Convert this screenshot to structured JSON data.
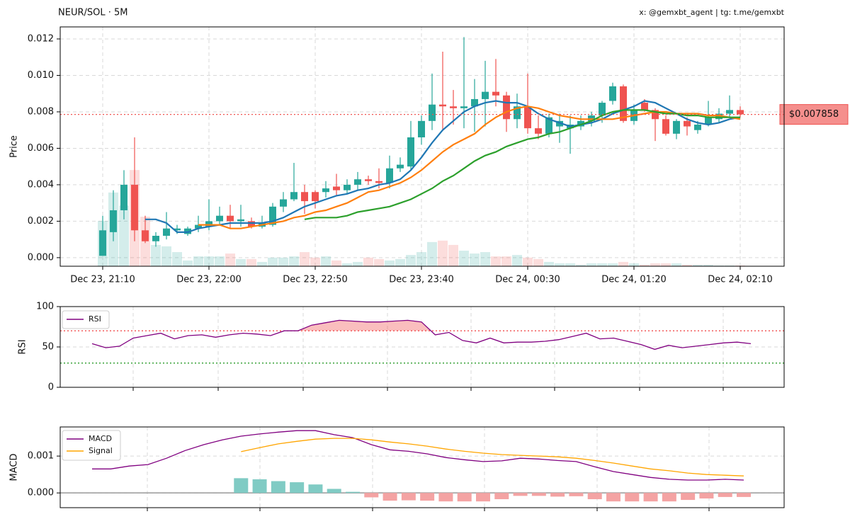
{
  "chart_data": [
    {
      "type": "candlestick",
      "title": "NEUR/SOL · 5M",
      "subtitle": "x: @gemxbt_agent | tg: t.me/gemxbt",
      "ylabel": "Price",
      "categories": [
        "Dec 23, 21:10",
        null,
        null,
        null,
        null,
        null,
        null,
        null,
        null,
        null,
        "Dec 23, 22:00",
        null,
        null,
        null,
        null,
        null,
        null,
        null,
        null,
        null,
        "Dec 23, 22:50",
        null,
        null,
        null,
        null,
        null,
        null,
        null,
        null,
        null,
        "Dec 23, 23:40",
        null,
        null,
        null,
        null,
        null,
        null,
        null,
        null,
        null,
        "Dec 24, 00:30",
        null,
        null,
        null,
        null,
        null,
        null,
        null,
        null,
        null,
        "Dec 24, 01:20",
        null,
        null,
        null,
        null,
        null,
        null,
        null,
        null,
        null,
        "Dec 24, 02:10"
      ],
      "open": [
        0.0001,
        0.0014,
        0.0026,
        0.004,
        0.0015,
        0.0009,
        0.0012,
        0.0015,
        0.0013,
        0.0016,
        0.0017,
        0.002,
        0.0023,
        0.002,
        0.002,
        0.0017,
        0.0018,
        0.0028,
        0.0032,
        0.0036,
        0.0036,
        0.0036,
        0.0039,
        0.0037,
        0.004,
        0.0043,
        0.0042,
        0.0041,
        0.0049,
        0.005,
        0.0066,
        0.0075,
        0.0084,
        0.0083,
        0.0082,
        0.0083,
        0.0087,
        0.0091,
        0.0089,
        0.0076,
        0.0083,
        0.0071,
        0.0068,
        0.0072,
        0.0071,
        0.0072,
        0.0075,
        0.0078,
        0.0086,
        0.0094,
        0.0075,
        0.0085,
        0.0081,
        0.0076,
        0.0068,
        0.0075,
        0.007,
        0.0073,
        0.0076,
        0.0079,
        0.0081
      ],
      "high": [
        0.0023,
        0.0037,
        0.0048,
        0.0066,
        0.0023,
        0.0014,
        0.0025,
        0.0018,
        0.0017,
        0.0023,
        0.0032,
        0.0028,
        0.0029,
        0.0029,
        0.0022,
        0.0023,
        0.003,
        0.0036,
        0.0052,
        0.004,
        0.0037,
        0.0042,
        0.0046,
        0.0043,
        0.0047,
        0.0045,
        0.0049,
        0.0056,
        0.0055,
        0.0075,
        0.0078,
        0.0101,
        0.0113,
        0.0092,
        0.0121,
        0.0098,
        0.0108,
        0.0109,
        0.0091,
        0.009,
        0.0101,
        0.0078,
        0.0079,
        0.0079,
        0.0078,
        0.0078,
        0.008,
        0.0086,
        0.0096,
        0.0095,
        0.0084,
        0.0087,
        0.0082,
        0.0078,
        0.0076,
        0.0077,
        0.0075,
        0.0086,
        0.0082,
        0.0089,
        0.0083
      ],
      "low": [
        0.0001,
        0.0009,
        0.0021,
        0.0009,
        0.0008,
        0.0006,
        0.001,
        0.0013,
        0.0012,
        0.0014,
        0.0015,
        0.0018,
        0.0016,
        0.0017,
        0.0016,
        0.0016,
        0.0017,
        0.0025,
        0.0031,
        0.0024,
        0.0027,
        0.0033,
        0.0034,
        0.0035,
        0.0037,
        0.004,
        0.0038,
        0.0038,
        0.0047,
        0.0048,
        0.0062,
        0.007,
        0.007,
        0.0073,
        0.0071,
        0.0069,
        0.0072,
        0.0083,
        0.0069,
        0.0071,
        0.0068,
        0.0065,
        0.0066,
        0.0063,
        0.0057,
        0.007,
        0.0072,
        0.0074,
        0.0084,
        0.0074,
        0.0073,
        0.008,
        0.0064,
        0.0067,
        0.0065,
        0.0067,
        0.0068,
        0.0072,
        0.0074,
        0.0077,
        0.0077
      ],
      "close": [
        0.0015,
        0.0026,
        0.004,
        0.0015,
        0.0009,
        0.0012,
        0.0016,
        0.0016,
        0.0016,
        0.0018,
        0.002,
        0.0023,
        0.002,
        0.0021,
        0.0017,
        0.0019,
        0.0028,
        0.0032,
        0.0036,
        0.0031,
        0.0031,
        0.0038,
        0.0037,
        0.004,
        0.0043,
        0.0042,
        0.0041,
        0.0049,
        0.0051,
        0.0066,
        0.0075,
        0.0084,
        0.0083,
        0.0082,
        0.0083,
        0.0087,
        0.0091,
        0.0089,
        0.0076,
        0.0083,
        0.0071,
        0.0068,
        0.0077,
        0.0075,
        0.0073,
        0.0075,
        0.0078,
        0.0085,
        0.0094,
        0.0075,
        0.0081,
        0.0081,
        0.0076,
        0.0068,
        0.0075,
        0.0072,
        0.0073,
        0.0077,
        0.0079,
        0.0081,
        0.00786
      ],
      "volume": [
        18.9,
        30.8,
        25.4,
        40.2,
        20.7,
        8.9,
        8.3,
        5.9,
        2.4,
        4.1,
        4.1,
        4.1,
        5.3,
        3,
        3,
        1.8,
        3.6,
        3.6,
        4.1,
        5.9,
        3.6,
        4.1,
        2.4,
        1.2,
        1.8,
        3.6,
        3,
        2.4,
        3,
        4.7,
        5.9,
        10.1,
        10.7,
        8.9,
        6.5,
        5.3,
        5.9,
        4.1,
        4.1,
        4.7,
        3.6,
        3,
        1.8,
        1.2,
        1.2,
        0.6,
        1.2,
        1.2,
        1.2,
        1.8,
        1.2,
        0.6,
        1.2,
        1.2,
        1.2,
        0.6,
        0.6,
        0.6,
        0.3,
        0.3,
        0.3
      ],
      "volume_ylim": [
        0,
        100
      ],
      "up_color": "#26a69a",
      "down_color": "#ef5350",
      "lines": [
        {
          "color": "#1f77b4",
          "values": [
            null,
            null,
            null,
            null,
            0.0021,
            0.0021,
            0.0019,
            0.0014,
            0.0014,
            0.0016,
            0.0017,
            0.0018,
            0.0019,
            0.0019,
            0.0019,
            0.0019,
            0.002,
            0.0022,
            0.0025,
            0.0028,
            0.003,
            0.0032,
            0.0034,
            0.0035,
            0.0037,
            0.0038,
            0.004,
            0.0041,
            0.0043,
            0.0048,
            0.0055,
            0.0063,
            0.007,
            0.0075,
            0.008,
            0.0083,
            0.0085,
            0.0086,
            0.0085,
            0.0085,
            0.0083,
            0.0079,
            0.0076,
            0.0074,
            0.0072,
            0.0073,
            0.0074,
            0.0076,
            0.0079,
            0.0081,
            0.0083,
            0.0086,
            0.0085,
            0.0082,
            0.0079,
            0.0076,
            0.0074,
            0.0073,
            0.0074,
            0.0076,
            0.0077
          ]
        },
        {
          "color": "#ff7f0e",
          "values": [
            null,
            null,
            null,
            null,
            null,
            null,
            null,
            null,
            null,
            0.0018,
            0.0018,
            0.0018,
            0.0016,
            0.0016,
            0.0017,
            0.0018,
            0.0019,
            0.002,
            0.0022,
            0.0023,
            0.0025,
            0.0026,
            0.0028,
            0.003,
            0.0033,
            0.0036,
            0.0037,
            0.0039,
            0.0041,
            0.0044,
            0.0048,
            0.0053,
            0.0058,
            0.0062,
            0.0065,
            0.0068,
            0.0073,
            0.0077,
            0.008,
            0.0082,
            0.0083,
            0.0082,
            0.008,
            0.0078,
            0.0077,
            0.0076,
            0.0076,
            0.0076,
            0.0076,
            0.0077,
            0.0078,
            0.0079,
            0.008,
            0.008,
            0.0079,
            0.0079,
            0.0079,
            0.0078,
            0.0078,
            0.0077,
            0.0076
          ]
        },
        {
          "color": "#2ca02c",
          "values": [
            null,
            null,
            null,
            null,
            null,
            null,
            null,
            null,
            null,
            null,
            null,
            null,
            null,
            null,
            null,
            null,
            null,
            null,
            null,
            0.0021,
            0.0022,
            0.0022,
            0.0022,
            0.0023,
            0.0025,
            0.0026,
            0.0027,
            0.0028,
            0.003,
            0.0032,
            0.0035,
            0.0038,
            0.0042,
            0.0045,
            0.0049,
            0.0053,
            0.0056,
            0.0058,
            0.0061,
            0.0063,
            0.0065,
            0.0066,
            0.0068,
            0.0069,
            0.0071,
            0.0073,
            0.0075,
            0.0078,
            0.008,
            0.0081,
            0.0081,
            0.0081,
            0.008,
            0.0079,
            0.0079,
            0.0078,
            0.0078,
            0.0077,
            0.0077,
            0.0077,
            0.0077
          ]
        }
      ],
      "price_line": {
        "value": 0.007858,
        "label": "$0.007858",
        "color": "#ef5350"
      },
      "ylim": [
        -0.00047,
        0.01266
      ],
      "yticks": [
        {
          "value": 0,
          "label": "0.000"
        },
        {
          "value": 0.002,
          "label": "0.002"
        },
        {
          "value": 0.004,
          "label": "0.004"
        },
        {
          "value": 0.006,
          "label": "0.006"
        },
        {
          "value": 0.008,
          "label": "0.008"
        },
        {
          "value": 0.01,
          "label": "0.010"
        },
        {
          "value": 0.012,
          "label": "0.012"
        }
      ],
      "grid": true
    },
    {
      "type": "rsi",
      "ylabel": "RSI",
      "series": [
        {
          "name": "RSI",
          "color": "#800080",
          "values": [
            54,
            49,
            51,
            61,
            64,
            67,
            60,
            64,
            65,
            62,
            65,
            67,
            66,
            64,
            70,
            70,
            77,
            80,
            83,
            82,
            81,
            81,
            82,
            83,
            81,
            65,
            68,
            58,
            55,
            61,
            55,
            56,
            56,
            57,
            59,
            63,
            67,
            60,
            61,
            57,
            53,
            47,
            52,
            49,
            51,
            53,
            55,
            56,
            54
          ]
        }
      ],
      "levels": [
        {
          "value": 70,
          "color": "#f25c5c"
        },
        {
          "value": 30,
          "color": "#3aa33a"
        }
      ],
      "ylim": [
        0,
        100
      ],
      "yticks": [
        0,
        50,
        100
      ],
      "grid": true
    },
    {
      "type": "macd",
      "ylabel": "MACD",
      "series": [
        {
          "name": "MACD",
          "color": "#800080",
          "values": [
            0.00065,
            0.00065,
            0.00073,
            0.00077,
            0.00094,
            0.00115,
            0.00131,
            0.00144,
            0.00154,
            0.0016,
            0.00165,
            0.00169,
            0.00169,
            0.00158,
            0.0015,
            0.00131,
            0.00117,
            0.00113,
            0.00106,
            0.00096,
            0.0009,
            0.00085,
            0.00087,
            0.00094,
            0.00092,
            0.00088,
            0.00085,
            0.00071,
            0.00058,
            0.0005,
            0.00042,
            0.00037,
            0.00035,
            0.00035,
            0.00037,
            0.00035
          ]
        },
        {
          "name": "Signal",
          "color": "#ffa500",
          "values": [
            null,
            null,
            null,
            null,
            null,
            null,
            null,
            null,
            0.00112,
            0.00123,
            0.00133,
            0.0014,
            0.00146,
            0.00148,
            0.00148,
            0.00144,
            0.00138,
            0.00133,
            0.00127,
            0.00119,
            0.00113,
            0.00108,
            0.00104,
            0.00102,
            0.001,
            0.00098,
            0.00094,
            0.00088,
            0.00081,
            0.00073,
            0.00065,
            0.0006,
            0.00054,
            0.0005,
            0.00048,
            0.00046
          ]
        }
      ],
      "histogram": {
        "up_color": "#80cbc4",
        "down_color": "#f4a3a3",
        "values": [
          null,
          null,
          null,
          null,
          null,
          null,
          null,
          null,
          0.0004,
          0.00037,
          0.00032,
          0.00029,
          0.00023,
          0.00011,
          3e-05,
          -0.00012,
          -0.00021,
          -0.0002,
          -0.00021,
          -0.00023,
          -0.00023,
          -0.00023,
          -0.00017,
          -8e-05,
          -8e-05,
          -0.0001,
          -9e-05,
          -0.00017,
          -0.00023,
          -0.00023,
          -0.00023,
          -0.00023,
          -0.00019,
          -0.00015,
          -0.00011,
          -0.00011
        ]
      },
      "ylim": [
        -0.0004,
        0.00179
      ],
      "yticks": [
        {
          "value": 0,
          "label": "0.000"
        },
        {
          "value": 0.001,
          "label": "0.001"
        }
      ],
      "grid": true
    }
  ]
}
